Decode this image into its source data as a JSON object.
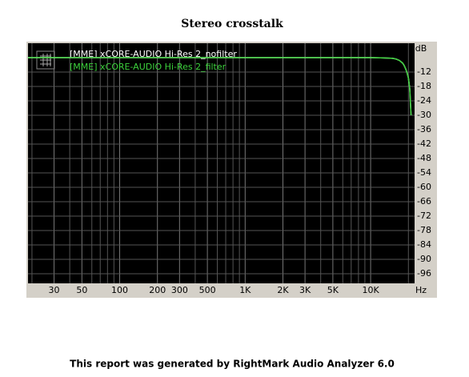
{
  "chart_data": {
    "type": "line",
    "title": "Stereo crosstalk",
    "y_label": "dB",
    "x_label": "Hz",
    "footer": "This report was generated by RightMark Audio Analyzer 6.0",
    "x": [
      18.6,
      100,
      1000,
      5000,
      10000,
      12000,
      14000,
      15000,
      16000,
      17000,
      18000,
      18500,
      19000,
      19500,
      20000,
      20500,
      21000
    ],
    "series": [
      {
        "name": "[MME] xCORE-AUDIO Hi-Res 2_nofilter",
        "color": "#ffffff",
        "values": [
          -6,
          -6,
          -6,
          -6,
          -6,
          -6.1,
          -6.2,
          -6.3,
          -6.6,
          -7.2,
          -8.3,
          -9.3,
          -10.6,
          -12.3,
          -14.5,
          -19,
          -30
        ]
      },
      {
        "name": "[MME] xCORE-AUDIO Hi-Res 2_filter",
        "color": "#3cd23c",
        "values": [
          -6,
          -6,
          -6,
          -6,
          -6,
          -6.1,
          -6.2,
          -6.3,
          -6.6,
          -7.2,
          -8.3,
          -9.3,
          -10.6,
          -12.3,
          -14.5,
          -19,
          -30
        ]
      }
    ],
    "xlim": [
      18.6,
      22400
    ],
    "xlog": true,
    "xticks": [
      30,
      50,
      100,
      200,
      300,
      500,
      {
        "value": 1000,
        "label": "1K"
      },
      {
        "value": 2000,
        "label": "2K"
      },
      {
        "value": 3000,
        "label": "3K"
      },
      {
        "value": 5000,
        "label": "5K"
      },
      {
        "value": 10000,
        "label": "10K"
      }
    ],
    "xgrid": [
      20,
      40,
      60,
      70,
      80,
      90,
      400,
      600,
      700,
      800,
      900,
      4000,
      6000,
      7000,
      8000,
      9000,
      20000
    ],
    "ylim": [
      -100,
      0
    ],
    "yticks": [
      -12,
      -18,
      -24,
      -30,
      -36,
      -42,
      -48,
      -54,
      -60,
      -66,
      -72,
      -78,
      -84,
      -90,
      -96
    ],
    "grid": true
  }
}
